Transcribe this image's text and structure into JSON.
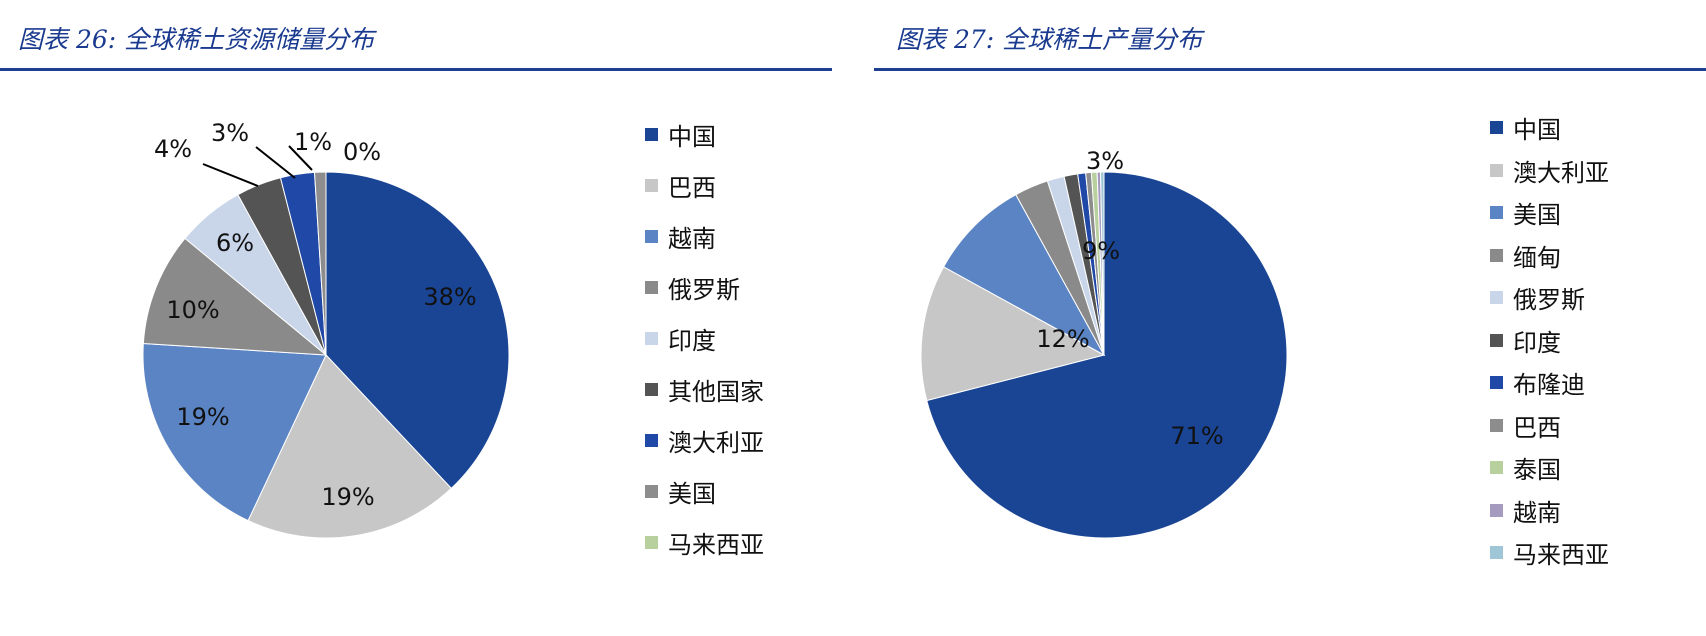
{
  "chart_data": [
    {
      "type": "pie",
      "title": "图表 26:  全球稀土资源储量分布",
      "categories": [
        "中国",
        "巴西",
        "越南",
        "俄罗斯",
        "印度",
        "其他国家",
        "澳大利亚",
        "美国",
        "马来西亚"
      ],
      "values": [
        38,
        19,
        19,
        10,
        6,
        4,
        3,
        1,
        0
      ],
      "labels": [
        "38%",
        "19%",
        "19%",
        "10%",
        "6%",
        "4%",
        "3%",
        "1%",
        "0%"
      ],
      "colors": [
        "#1a4595",
        "#c7c7c7",
        "#5b84c4",
        "#8a8a8a",
        "#c9d6ea",
        "#545454",
        "#2048a6",
        "#8d8d8d",
        "#b8cf9e"
      ],
      "legend_position": "right"
    },
    {
      "type": "pie",
      "title": "图表 27:  全球稀土产量分布",
      "categories": [
        "中国",
        "澳大利亚",
        "美国",
        "缅甸",
        "俄罗斯",
        "印度",
        "布隆迪",
        "巴西",
        "泰国",
        "越南",
        "马来西亚"
      ],
      "values": [
        71,
        12,
        9,
        3,
        1.5,
        1.2,
        0.7,
        0.5,
        0.5,
        0.3,
        0.3
      ],
      "labels": [
        "71%",
        "12%",
        "9%",
        "3%",
        "",
        "",
        "",
        "",
        "",
        "",
        ""
      ],
      "colors": [
        "#1a4595",
        "#c7c7c7",
        "#5b84c4",
        "#8a8a8a",
        "#c9d6ea",
        "#545454",
        "#2048a6",
        "#8d8d8d",
        "#b8cf9e",
        "#a49bbf",
        "#9ec6d6"
      ],
      "legend_position": "right"
    }
  ]
}
